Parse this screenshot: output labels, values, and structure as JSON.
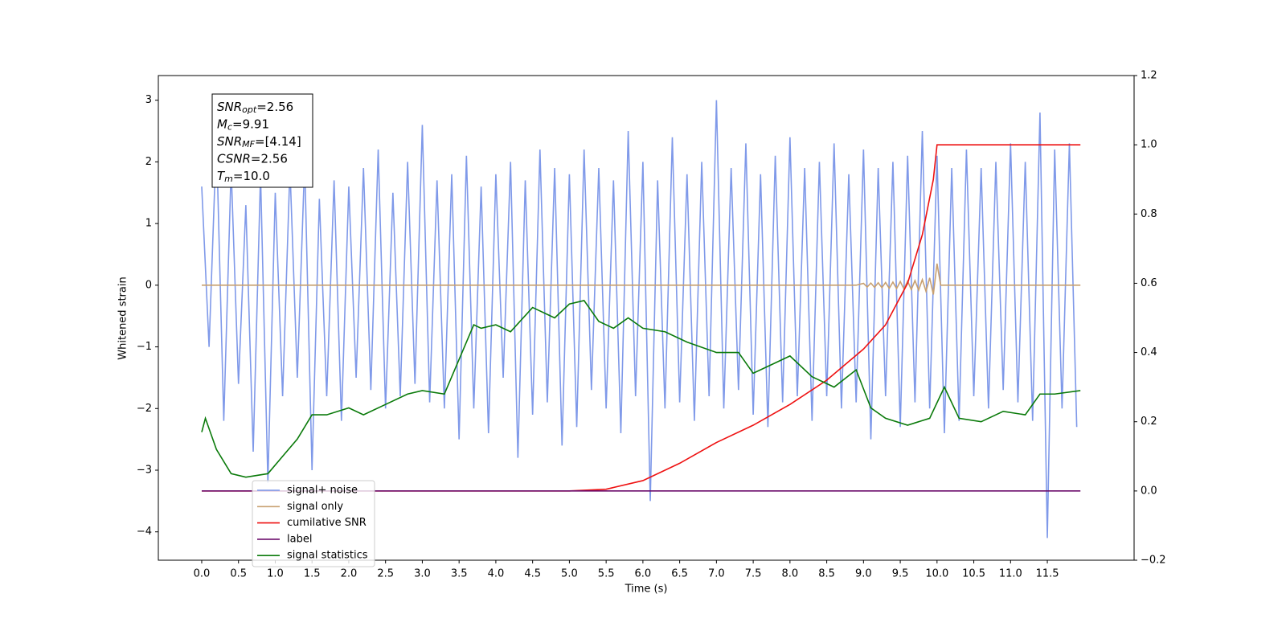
{
  "chart_data": {
    "type": "line",
    "xlabel": "Time (s)",
    "ylabel": "Whitened strain",
    "xlim": [
      -0.59,
      12.68
    ],
    "ylim": [
      -4.46,
      3.4
    ],
    "y2lim": [
      -0.2,
      1.2
    ],
    "xticks": [
      {
        "value": 0,
        "label": "0.0"
      },
      {
        "value": 0.5,
        "label": "0.5"
      },
      {
        "value": 1,
        "label": "1.0"
      },
      {
        "value": 1.5,
        "label": "1.5"
      },
      {
        "value": 2,
        "label": "2.0"
      },
      {
        "value": 2.5,
        "label": "2.5"
      },
      {
        "value": 3,
        "label": "3.0"
      },
      {
        "value": 3.5,
        "label": "3.5"
      },
      {
        "value": 4,
        "label": "4.0"
      },
      {
        "value": 4.5,
        "label": "4.5"
      },
      {
        "value": 5,
        "label": "5.0"
      },
      {
        "value": 5.5,
        "label": "5.5"
      },
      {
        "value": 6,
        "label": "6.0"
      },
      {
        "value": 6.5,
        "label": "6.5"
      },
      {
        "value": 7,
        "label": "7.0"
      },
      {
        "value": 7.5,
        "label": "7.5"
      },
      {
        "value": 8,
        "label": "8.0"
      },
      {
        "value": 8.5,
        "label": "8.5"
      },
      {
        "value": 9,
        "label": "9.0"
      },
      {
        "value": 9.5,
        "label": "9.5"
      },
      {
        "value": 10,
        "label": "10.0"
      },
      {
        "value": 10.5,
        "label": "10.5"
      },
      {
        "value": 11,
        "label": "11.0"
      },
      {
        "value": 11.5,
        "label": "11.5"
      }
    ],
    "yticks": [
      {
        "value": -4,
        "label": "−4"
      },
      {
        "value": -3,
        "label": "−3"
      },
      {
        "value": -2,
        "label": "−2"
      },
      {
        "value": -1,
        "label": "−1"
      },
      0,
      1,
      2,
      3
    ],
    "y2ticks": [
      {
        "value": -0.2,
        "label": "−0.2"
      },
      {
        "value": 0,
        "label": "0.0"
      },
      {
        "value": 0.2,
        "label": "0.2"
      },
      {
        "value": 0.4,
        "label": "0.4"
      },
      {
        "value": 0.6,
        "label": "0.6"
      },
      {
        "value": 0.8,
        "label": "0.8"
      },
      {
        "value": 1,
        "label": "1.0"
      },
      {
        "value": 1.2,
        "label": "1.2"
      }
    ],
    "legend": "lower left",
    "annotation": [
      {
        "base": "SNR",
        "sub": "opt",
        "rest": "=2.56"
      },
      {
        "base": "M",
        "sub": "c",
        "rest": "=9.91"
      },
      {
        "base": "SNR",
        "sub": "MF",
        "rest": "=[4.14]"
      },
      {
        "base": "CSNR",
        "rest": "=2.56"
      },
      {
        "base": "T",
        "sub": "m",
        "rest": "=10.0"
      }
    ],
    "series": [
      {
        "name": "signal+ noise",
        "color": "#7893e8",
        "axis": "y",
        "x": [
          0,
          0.1,
          0.2,
          0.3,
          0.4,
          0.5,
          0.6,
          0.7,
          0.8,
          0.9,
          1,
          1.1,
          1.2,
          1.3,
          1.4,
          1.5,
          1.6,
          1.7,
          1.8,
          1.9,
          2,
          2.1,
          2.2,
          2.3,
          2.4,
          2.5,
          2.6,
          2.7,
          2.8,
          2.9,
          3,
          3.1,
          3.2,
          3.3,
          3.4,
          3.5,
          3.6,
          3.7,
          3.8,
          3.9,
          4,
          4.1,
          4.2,
          4.3,
          4.4,
          4.5,
          4.6,
          4.7,
          4.8,
          4.9,
          5,
          5.1,
          5.2,
          5.3,
          5.4,
          5.5,
          5.6,
          5.7,
          5.8,
          5.9,
          6,
          6.1,
          6.2,
          6.3,
          6.4,
          6.5,
          6.6,
          6.7,
          6.8,
          6.9,
          7,
          7.1,
          7.2,
          7.3,
          7.4,
          7.5,
          7.6,
          7.7,
          7.8,
          7.9,
          8,
          8.1,
          8.2,
          8.3,
          8.4,
          8.5,
          8.6,
          8.7,
          8.8,
          8.9,
          9,
          9.1,
          9.2,
          9.3,
          9.4,
          9.5,
          9.6,
          9.7,
          9.8,
          9.9,
          10,
          10.1,
          10.2,
          10.3,
          10.4,
          10.5,
          10.6,
          10.7,
          10.8,
          10.9,
          11,
          11.1,
          11.2,
          11.3,
          11.4,
          11.5,
          11.6,
          11.7,
          11.8,
          11.9
        ],
        "values": [
          1.6,
          -1.0,
          2.4,
          -2.2,
          1.9,
          -1.6,
          1.3,
          -2.7,
          1.8,
          -3.2,
          1.5,
          -1.8,
          1.9,
          -1.5,
          2.0,
          -3.0,
          1.4,
          -1.8,
          1.7,
          -2.2,
          1.6,
          -1.5,
          1.9,
          -1.7,
          2.2,
          -2.0,
          1.5,
          -1.8,
          2.0,
          -1.6,
          2.6,
          -1.9,
          1.7,
          -2.0,
          1.8,
          -2.5,
          2.1,
          -2.0,
          1.6,
          -2.4,
          1.8,
          -1.5,
          2.0,
          -2.8,
          1.7,
          -2.1,
          2.2,
          -1.9,
          1.9,
          -2.6,
          1.8,
          -2.3,
          2.2,
          -1.7,
          1.9,
          -2.0,
          1.7,
          -2.4,
          2.5,
          -1.8,
          2.0,
          -3.5,
          1.7,
          -2.0,
          2.4,
          -1.9,
          1.8,
          -2.2,
          2.0,
          -1.8,
          3.0,
          -2.0,
          1.9,
          -1.7,
          2.3,
          -2.1,
          1.8,
          -2.3,
          2.1,
          -1.9,
          2.4,
          -1.8,
          1.9,
          -2.2,
          2.0,
          -1.8,
          2.3,
          -2.0,
          1.8,
          -1.9,
          2.2,
          -2.5,
          1.9,
          -1.8,
          2.0,
          -2.3,
          2.1,
          -1.9,
          2.5,
          -2.0,
          2.1,
          -2.4,
          1.9,
          -2.2,
          2.2,
          -1.8,
          1.9,
          -2.0,
          2.0,
          -1.7,
          2.3,
          -1.9,
          2.0,
          -2.2,
          2.8,
          -4.1,
          2.2,
          -2.0,
          2.3,
          -2.3
        ]
      },
      {
        "name": "signal only",
        "color": "#c8a070",
        "axis": "y",
        "x": [
          0,
          8.9,
          9.0,
          9.05,
          9.1,
          9.15,
          9.2,
          9.25,
          9.3,
          9.35,
          9.4,
          9.45,
          9.5,
          9.55,
          9.6,
          9.65,
          9.7,
          9.75,
          9.8,
          9.85,
          9.9,
          9.95,
          10.0,
          10.05,
          11.95
        ],
        "values": [
          0,
          0,
          0.03,
          -0.03,
          0.035,
          -0.035,
          0.04,
          -0.04,
          0.045,
          -0.05,
          0.05,
          -0.055,
          0.06,
          -0.06,
          0.065,
          -0.07,
          0.075,
          -0.08,
          0.09,
          -0.1,
          0.12,
          -0.15,
          0.35,
          0,
          0
        ]
      },
      {
        "name": "cumilative SNR",
        "color": "#ee1111",
        "axis": "y2",
        "x": [
          0,
          5.0,
          5.5,
          6.0,
          6.5,
          7.0,
          7.5,
          8.0,
          8.5,
          9.0,
          9.3,
          9.6,
          9.8,
          9.95,
          10.0,
          11.95
        ],
        "values": [
          0,
          0,
          0.005,
          0.03,
          0.08,
          0.14,
          0.19,
          0.25,
          0.32,
          0.41,
          0.48,
          0.6,
          0.74,
          0.9,
          1.0,
          1.0
        ]
      },
      {
        "name": "label",
        "color": "#6a0a6a",
        "axis": "y2",
        "x": [
          0,
          11.95
        ],
        "values": [
          0,
          0
        ]
      },
      {
        "name": "signal statistics",
        "color": "#0a7a0a",
        "axis": "y2",
        "x": [
          0,
          0.05,
          0.2,
          0.4,
          0.6,
          0.9,
          1.1,
          1.3,
          1.5,
          1.7,
          2.0,
          2.2,
          2.5,
          2.8,
          3.0,
          3.3,
          3.5,
          3.7,
          3.8,
          4.0,
          4.2,
          4.5,
          4.8,
          5.0,
          5.2,
          5.4,
          5.6,
          5.8,
          6.0,
          6.3,
          6.6,
          7.0,
          7.3,
          7.5,
          7.8,
          8.0,
          8.3,
          8.6,
          8.9,
          9.1,
          9.3,
          9.6,
          9.9,
          10.1,
          10.3,
          10.6,
          10.9,
          11.2,
          11.4,
          11.6,
          11.95
        ],
        "values": [
          0.17,
          0.21,
          0.12,
          0.05,
          0.04,
          0.05,
          0.1,
          0.15,
          0.22,
          0.22,
          0.24,
          0.22,
          0.25,
          0.28,
          0.29,
          0.28,
          0.38,
          0.48,
          0.47,
          0.48,
          0.46,
          0.53,
          0.5,
          0.54,
          0.55,
          0.49,
          0.47,
          0.5,
          0.47,
          0.46,
          0.43,
          0.4,
          0.4,
          0.34,
          0.37,
          0.39,
          0.33,
          0.3,
          0.35,
          0.24,
          0.21,
          0.19,
          0.21,
          0.3,
          0.21,
          0.2,
          0.23,
          0.22,
          0.28,
          0.28,
          0.29
        ]
      }
    ]
  }
}
